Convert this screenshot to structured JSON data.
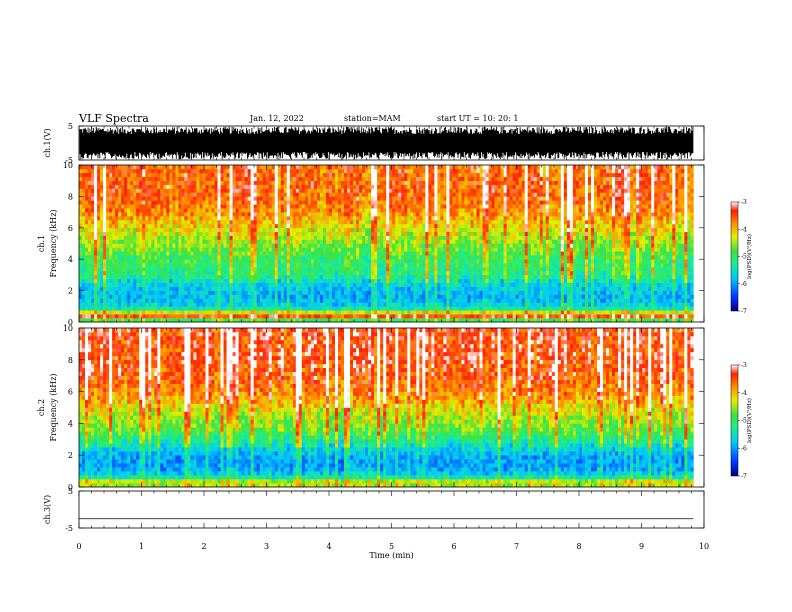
{
  "header": {
    "title": "VLF Spectra",
    "date": "Jan. 12, 2022",
    "station": "station=MAM",
    "start": "start  UT =   10: 20: 1"
  },
  "colors": {
    "scale": [
      "#000080",
      "#0030ff",
      "#00c8ff",
      "#20f080",
      "#40e040",
      "#e0f000",
      "#ff9000",
      "#ff2000",
      "#ffffff"
    ],
    "waveform": "#000000"
  },
  "chart_data": {
    "type": "heatmap",
    "x_axis": {
      "label": "Time  (min)",
      "ticks": [
        "0",
        "1",
        "2",
        "3",
        "4",
        "5",
        "6",
        "7",
        "8",
        "9",
        "10"
      ],
      "range": [
        0,
        10
      ],
      "data_end": 9.83
    },
    "panels": [
      {
        "kind": "waveform",
        "ylabel": "ch.1(V)",
        "yticks": [
          "5",
          "-5"
        ],
        "ylim": [
          -5,
          5
        ],
        "amplitude": 4.8
      },
      {
        "kind": "spectrogram",
        "ylabel_top": "ch.1",
        "ylabel": "Frequency  (kHz)",
        "yticks": [
          "0",
          "2",
          "4",
          "6",
          "8",
          "10"
        ],
        "ylim": [
          0,
          10
        ],
        "colorbar": {
          "ticks": [
            "-3",
            "-4",
            "-5",
            "-6",
            "-7"
          ],
          "label": "log(PSD)(V²/Hz)",
          "range": [
            -7,
            -3
          ]
        },
        "profile_khz": [
          0,
          0.3,
          0.5,
          0.8,
          1,
          1.5,
          2,
          2.5,
          3,
          3.5,
          4,
          4.5,
          5,
          5.5,
          6,
          6.5,
          7,
          8,
          9,
          10
        ],
        "profile_log_psd": [
          -6.0,
          -3.3,
          -3.7,
          -5.3,
          -5.6,
          -5.9,
          -5.8,
          -5.6,
          -5.2,
          -5.1,
          -5.0,
          -4.8,
          -4.6,
          -4.4,
          -4.2,
          -4.0,
          -3.8,
          -3.6,
          -3.6,
          -3.6
        ]
      },
      {
        "kind": "spectrogram",
        "ylabel_top": "ch.2",
        "ylabel": "Frequency  (kHz)",
        "yticks": [
          "0",
          "2",
          "4",
          "6",
          "8",
          "10"
        ],
        "ylim": [
          0,
          10
        ],
        "colorbar": {
          "ticks": [
            "-3",
            "-4",
            "-5",
            "-6",
            "-7"
          ],
          "label": "log(PSD)(V²/Hz)",
          "range": [
            -7,
            -3
          ]
        },
        "profile_khz": [
          0,
          0.3,
          0.5,
          0.8,
          1,
          1.5,
          2,
          2.5,
          3,
          3.5,
          4,
          4.5,
          5,
          5.5,
          6,
          6.5,
          7,
          8,
          9,
          10
        ],
        "profile_log_psd": [
          -4.8,
          -4.0,
          -5.2,
          -5.6,
          -5.9,
          -6.0,
          -5.9,
          -5.6,
          -5.2,
          -4.8,
          -4.6,
          -4.4,
          -4.2,
          -3.9,
          -3.7,
          -3.6,
          -3.5,
          -3.4,
          -3.4,
          -3.4
        ]
      },
      {
        "kind": "waveform",
        "ylabel": "ch.3(V)",
        "yticks": [
          "5",
          "-5"
        ],
        "ylim": [
          -5,
          5
        ],
        "constant_value": -2.5
      }
    ]
  }
}
